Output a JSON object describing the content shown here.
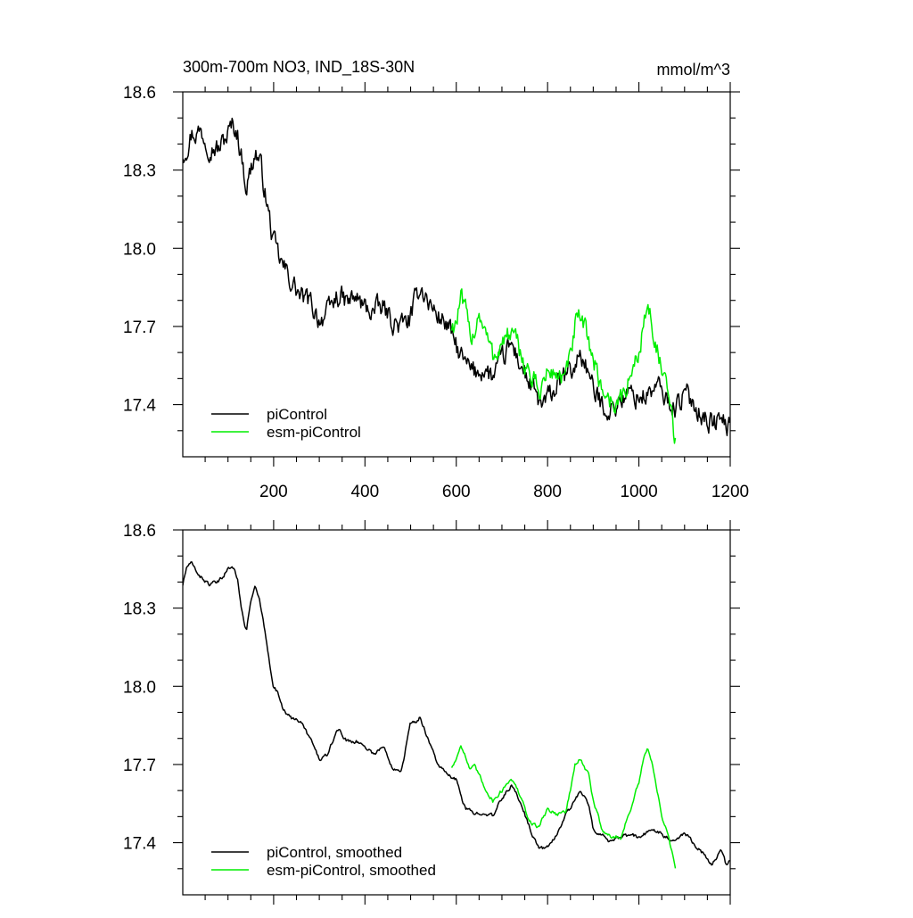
{
  "figure": {
    "title_left": "300m-700m NO3, IND_18S-30N",
    "title_right": "mmol/m^3"
  },
  "colors": {
    "picontrol": "#000000",
    "esm_picontrol": "#00ee00",
    "axis": "#000000"
  },
  "chart_data": [
    {
      "type": "line",
      "panel": "top",
      "title": "300m-700m NO3, IND_18S-30N",
      "units": "mmol/m^3",
      "xlim": [
        1,
        1200
      ],
      "ylim": [
        17.2,
        18.6
      ],
      "xticks": [
        200,
        400,
        600,
        800,
        1000,
        1200
      ],
      "xtick_labels": [
        "200",
        "400",
        "600",
        "800",
        "1000",
        "1200"
      ],
      "yticks": [
        17.4,
        17.7,
        18.0,
        18.3,
        18.6
      ],
      "ytick_labels": [
        "17.4",
        "17.7",
        "18.0",
        "18.3",
        "18.6"
      ],
      "legend": {
        "placement": "bottom-left",
        "entries": [
          "piControl",
          "esm-piControl"
        ]
      },
      "noise": 0.045,
      "series": [
        {
          "name": "piControl",
          "color": "#000000",
          "x": [
            1,
            20,
            40,
            60,
            80,
            100,
            110,
            120,
            130,
            140,
            150,
            160,
            170,
            180,
            190,
            200,
            210,
            220,
            240,
            260,
            280,
            290,
            300,
            320,
            340,
            360,
            380,
            400,
            420,
            440,
            460,
            480,
            500,
            510,
            520,
            530,
            540,
            560,
            580,
            600,
            620,
            640,
            660,
            680,
            700,
            720,
            740,
            760,
            780,
            790,
            800,
            820,
            840,
            860,
            870,
            880,
            890,
            900,
            920,
            940,
            960,
            980,
            1000,
            1020,
            1040,
            1060,
            1080,
            1100,
            1120,
            1140,
            1160,
            1180,
            1200
          ],
          "y": [
            18.36,
            18.44,
            18.45,
            18.4,
            18.38,
            18.44,
            18.47,
            18.45,
            18.35,
            18.24,
            18.3,
            18.37,
            18.33,
            18.23,
            18.12,
            18.02,
            17.97,
            17.93,
            17.87,
            17.81,
            17.79,
            17.76,
            17.73,
            17.75,
            17.82,
            17.79,
            17.81,
            17.77,
            17.76,
            17.77,
            17.72,
            17.7,
            17.73,
            17.79,
            17.86,
            17.83,
            17.79,
            17.74,
            17.71,
            17.62,
            17.55,
            17.52,
            17.54,
            17.5,
            17.57,
            17.63,
            17.56,
            17.48,
            17.41,
            17.39,
            17.42,
            17.47,
            17.51,
            17.54,
            17.6,
            17.57,
            17.52,
            17.45,
            17.4,
            17.38,
            17.42,
            17.44,
            17.43,
            17.44,
            17.47,
            17.42,
            17.39,
            17.44,
            17.41,
            17.36,
            17.33,
            17.34,
            17.31
          ]
        },
        {
          "name": "esm-piControl",
          "color": "#00ee00",
          "x": [
            590,
            600,
            610,
            620,
            630,
            640,
            650,
            660,
            680,
            700,
            720,
            740,
            760,
            780,
            800,
            820,
            840,
            850,
            860,
            870,
            880,
            890,
            900,
            920,
            940,
            960,
            980,
            1000,
            1010,
            1020,
            1030,
            1040,
            1050,
            1060,
            1070,
            1080
          ],
          "y": [
            17.7,
            17.72,
            17.8,
            17.75,
            17.66,
            17.69,
            17.76,
            17.7,
            17.58,
            17.64,
            17.67,
            17.6,
            17.52,
            17.45,
            17.52,
            17.52,
            17.5,
            17.58,
            17.7,
            17.72,
            17.69,
            17.66,
            17.57,
            17.46,
            17.41,
            17.41,
            17.5,
            17.6,
            17.72,
            17.77,
            17.7,
            17.62,
            17.52,
            17.45,
            17.38,
            17.25
          ]
        }
      ]
    },
    {
      "type": "line",
      "panel": "bottom",
      "xlim": [
        1,
        1200
      ],
      "ylim": [
        17.2,
        18.6
      ],
      "xticks": [
        200,
        400,
        600,
        800,
        1000,
        1200
      ],
      "yticks": [
        17.4,
        17.7,
        18.0,
        18.3,
        18.6
      ],
      "ytick_labels": [
        "17.4",
        "17.7",
        "18.0",
        "18.3",
        "18.6"
      ],
      "legend": {
        "placement": "bottom-left",
        "entries": [
          "piControl, smoothed",
          "esm-piControl, smoothed"
        ]
      },
      "noise": 0.008,
      "series": [
        {
          "name": "piControl, smoothed",
          "color": "#000000",
          "x": [
            1,
            10,
            20,
            40,
            60,
            80,
            100,
            110,
            120,
            130,
            140,
            150,
            160,
            170,
            180,
            190,
            200,
            210,
            220,
            240,
            250,
            260,
            280,
            300,
            320,
            340,
            360,
            380,
            400,
            420,
            440,
            460,
            480,
            500,
            510,
            520,
            530,
            540,
            560,
            580,
            600,
            620,
            640,
            660,
            680,
            700,
            720,
            740,
            760,
            780,
            800,
            820,
            840,
            860,
            870,
            880,
            890,
            900,
            920,
            940,
            960,
            980,
            1000,
            1020,
            1040,
            1060,
            1080,
            1100,
            1120,
            1140,
            1160,
            1180,
            1190,
            1200
          ],
          "y": [
            18.39,
            18.46,
            18.47,
            18.42,
            18.39,
            18.4,
            18.45,
            18.46,
            18.42,
            18.3,
            18.21,
            18.33,
            18.38,
            18.32,
            18.22,
            18.1,
            18.0,
            17.97,
            17.92,
            17.87,
            17.88,
            17.86,
            17.8,
            17.72,
            17.74,
            17.84,
            17.79,
            17.79,
            17.77,
            17.74,
            17.77,
            17.69,
            17.68,
            17.86,
            17.86,
            17.88,
            17.84,
            17.79,
            17.7,
            17.66,
            17.64,
            17.53,
            17.51,
            17.52,
            17.5,
            17.57,
            17.62,
            17.56,
            17.46,
            17.38,
            17.38,
            17.43,
            17.51,
            17.56,
            17.6,
            17.58,
            17.54,
            17.45,
            17.43,
            17.4,
            17.42,
            17.43,
            17.42,
            17.44,
            17.45,
            17.42,
            17.41,
            17.44,
            17.4,
            17.36,
            17.31,
            17.38,
            17.32,
            17.33
          ]
        },
        {
          "name": "esm-piControl, smoothed",
          "color": "#00ee00",
          "x": [
            590,
            600,
            610,
            620,
            630,
            640,
            650,
            660,
            680,
            700,
            720,
            740,
            760,
            780,
            800,
            820,
            840,
            850,
            860,
            870,
            880,
            890,
            900,
            920,
            940,
            960,
            980,
            1000,
            1010,
            1020,
            1030,
            1040,
            1050,
            1060,
            1070,
            1080
          ],
          "y": [
            17.69,
            17.72,
            17.78,
            17.73,
            17.68,
            17.69,
            17.66,
            17.62,
            17.56,
            17.6,
            17.65,
            17.58,
            17.48,
            17.46,
            17.53,
            17.51,
            17.52,
            17.6,
            17.7,
            17.72,
            17.69,
            17.66,
            17.56,
            17.45,
            17.42,
            17.42,
            17.52,
            17.63,
            17.72,
            17.76,
            17.7,
            17.6,
            17.5,
            17.45,
            17.38,
            17.3
          ]
        }
      ]
    }
  ]
}
